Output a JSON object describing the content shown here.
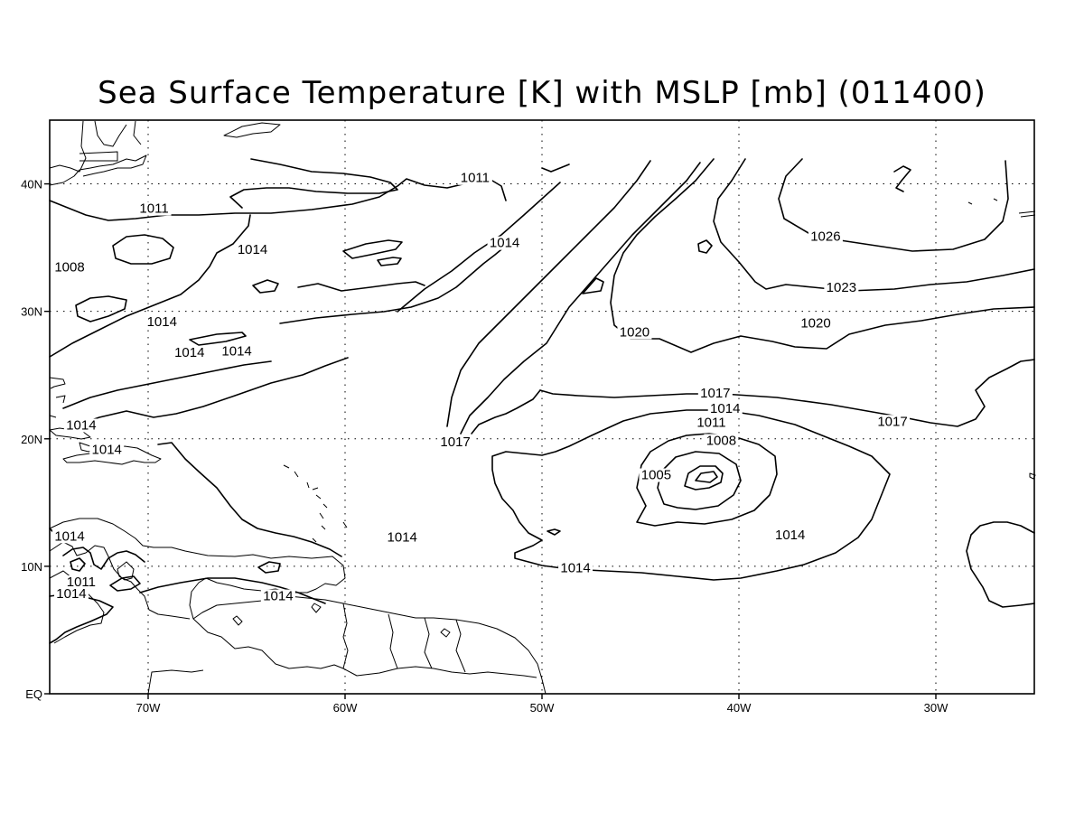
{
  "title": "Sea Surface Temperature [K] with MSLP [mb] (011400)",
  "map": {
    "projection": "lat-lon",
    "lon_range": [
      -75,
      -25
    ],
    "lat_range": [
      0,
      45
    ],
    "gridlines": "dotted"
  },
  "axes": {
    "x_ticks": [
      {
        "label": "70W",
        "lon": -70
      },
      {
        "label": "60W",
        "lon": -60
      },
      {
        "label": "50W",
        "lon": -50
      },
      {
        "label": "40W",
        "lon": -40
      },
      {
        "label": "30W",
        "lon": -30
      }
    ],
    "y_ticks": [
      {
        "label": "EQ",
        "lat": 0
      },
      {
        "label": "10N",
        "lat": 10
      },
      {
        "label": "20N",
        "lat": 20
      },
      {
        "label": "30N",
        "lat": 30
      },
      {
        "label": "40N",
        "lat": 40
      }
    ]
  },
  "contour_labels": [
    {
      "text": "1011",
      "lon": -53.4,
      "lat": 40.2
    },
    {
      "text": "1011",
      "lon": -69.7,
      "lat": 37.8
    },
    {
      "text": "1008",
      "lon": -74.8,
      "lat": 33.2
    },
    {
      "text": "1014",
      "lon": -64.7,
      "lat": 34.6
    },
    {
      "text": "1014",
      "lon": -51.9,
      "lat": 35.1
    },
    {
      "text": "1026",
      "lon": -35.6,
      "lat": 35.6
    },
    {
      "text": "1023",
      "lon": -34.8,
      "lat": 31.6
    },
    {
      "text": "1014",
      "lon": -69.3,
      "lat": 28.9
    },
    {
      "text": "1020",
      "lon": -45.3,
      "lat": 28.1
    },
    {
      "text": "1020",
      "lon": -36.1,
      "lat": 28.8
    },
    {
      "text": "1014",
      "lon": -67.9,
      "lat": 26.5
    },
    {
      "text": "1014",
      "lon": -65.5,
      "lat": 26.6
    },
    {
      "text": "1017",
      "lon": -41.2,
      "lat": 23.3
    },
    {
      "text": "1014",
      "lon": -40.7,
      "lat": 22.1
    },
    {
      "text": "1011",
      "lon": -41.4,
      "lat": 21.0
    },
    {
      "text": "1017",
      "lon": -32.2,
      "lat": 21.1
    },
    {
      "text": "1014",
      "lon": -73.4,
      "lat": 20.8
    },
    {
      "text": "1017",
      "lon": -54.4,
      "lat": 19.5
    },
    {
      "text": "1008",
      "lon": -40.9,
      "lat": 19.6
    },
    {
      "text": "1014",
      "lon": -72.1,
      "lat": 18.9
    },
    {
      "text": "1005",
      "lon": -44.2,
      "lat": 16.9
    },
    {
      "text": "1014",
      "lon": -57.1,
      "lat": 12.0
    },
    {
      "text": "1014",
      "lon": -76.1,
      "lat": 12.1
    },
    {
      "text": "1014",
      "lon": -37.4,
      "lat": 12.2
    },
    {
      "text": "1014",
      "lon": -48.3,
      "lat": 9.6
    },
    {
      "text": "1011",
      "lon": -73.4,
      "lat": 8.5
    },
    {
      "text": "1014",
      "lon": -73.9,
      "lat": 7.6
    },
    {
      "text": "1014",
      "lon": -63.4,
      "lat": 7.4
    }
  ]
}
